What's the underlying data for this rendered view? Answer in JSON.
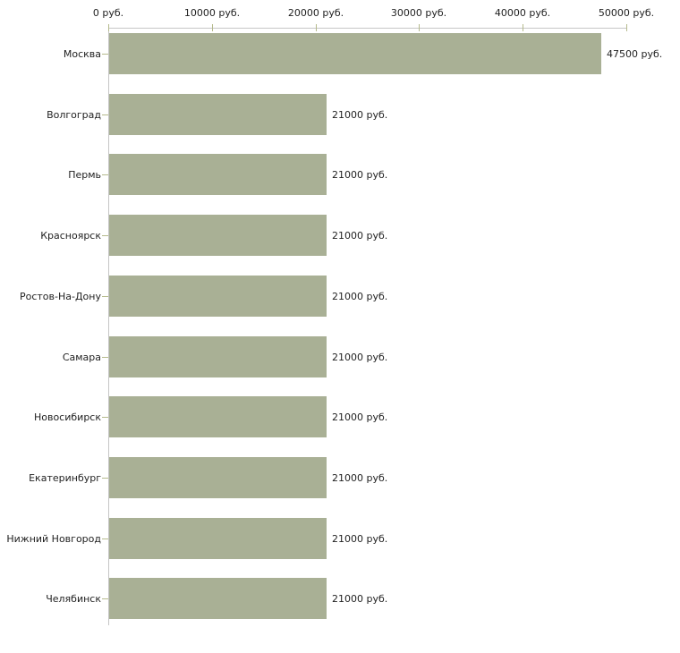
{
  "chart_data": {
    "type": "bar",
    "orientation": "horizontal",
    "title": "",
    "xlabel": "",
    "ylabel": "",
    "unit": "руб.",
    "xlim": [
      0,
      50000
    ],
    "grid": false,
    "legend": false,
    "x_tick_values": [
      0,
      10000,
      20000,
      30000,
      40000,
      50000
    ],
    "x_tick_labels": [
      "0 руб.",
      "10000 руб.",
      "20000 руб.",
      "30000 руб.",
      "40000 руб.",
      "50000 руб."
    ],
    "categories": [
      "Москва",
      "Волгоград",
      "Пермь",
      "Красноярск",
      "Ростов-На-Дону",
      "Самара",
      "Новосибирск",
      "Екатеринбург",
      "Нижний Новгород",
      "Челябинск"
    ],
    "values": [
      47500,
      21000,
      21000,
      21000,
      21000,
      21000,
      21000,
      21000,
      21000,
      21000
    ],
    "value_labels": [
      "47500 руб.",
      "21000 руб.",
      "21000 руб.",
      "21000 руб.",
      "21000 руб.",
      "21000 руб.",
      "21000 руб.",
      "21000 руб.",
      "21000 руб.",
      "21000 руб."
    ],
    "colors": {
      "bar": "#a9b095",
      "tick": "#b5ba8c",
      "axis_line": "#c6c6c6",
      "text": "#1f1f1f",
      "background": "#ffffff"
    }
  }
}
